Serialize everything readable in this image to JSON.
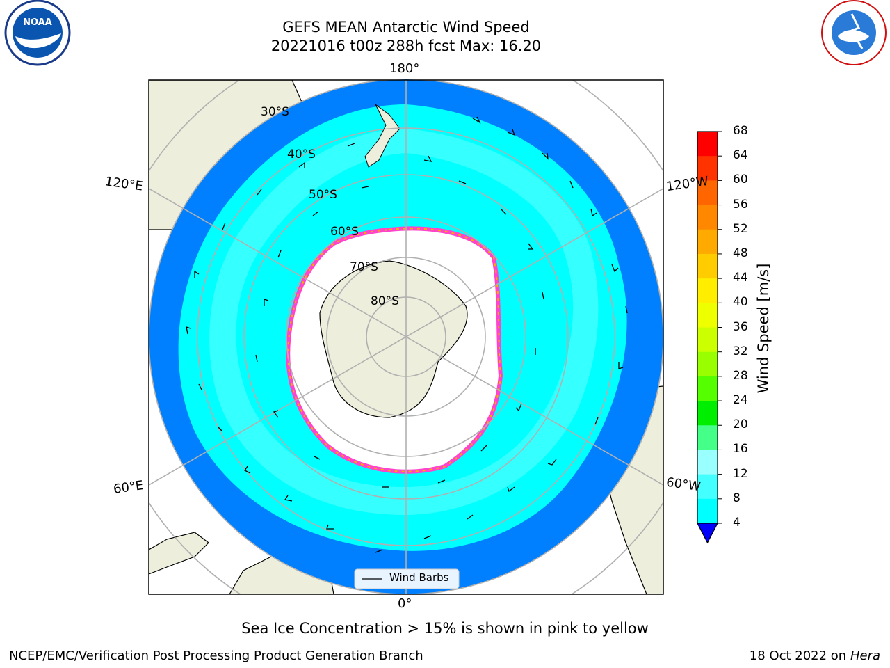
{
  "title_line1": "GEFS MEAN Antarctic Wind Speed",
  "title_line2": "20221016 t00z 288h fcst   Max: 16.20",
  "lon_labels": {
    "top": "180°",
    "bottom": "0°",
    "upper_left": "120°E",
    "upper_right": "120°W",
    "lower_left": "60°E",
    "lower_right": "60°W"
  },
  "lat_labels": [
    "30°S",
    "40°S",
    "50°S",
    "60°S",
    "70°S",
    "80°S"
  ],
  "legend_label": "Wind Barbs",
  "colorbar": {
    "label": "Wind Speed [m/s]",
    "ticks": [
      "68",
      "64",
      "60",
      "56",
      "52",
      "48",
      "44",
      "40",
      "36",
      "32",
      "28",
      "24",
      "20",
      "16",
      "12",
      "8",
      "4"
    ],
    "colors": [
      "#ff0000",
      "#ff3300",
      "#ff6600",
      "#ff8800",
      "#ffaa00",
      "#ffcc00",
      "#ffee00",
      "#eeff00",
      "#ccff00",
      "#99ff00",
      "#55ff00",
      "#00ee00",
      "#44ff88",
      "#99ffff",
      "#44ffff",
      "#00ffff",
      "#0080ff"
    ],
    "extend_color": "#0000ff"
  },
  "footer_note": "Sea Ice Concentration > 15% is shown in pink to yellow",
  "footer_left": "NCEP/EMC/Verification Post Processing Product Generation Branch",
  "footer_right_date": "18 Oct 2022 on",
  "footer_right_host": "Hera",
  "logos": {
    "left": "NOAA",
    "right": "NATIONAL WEATHER SERVICE"
  }
}
